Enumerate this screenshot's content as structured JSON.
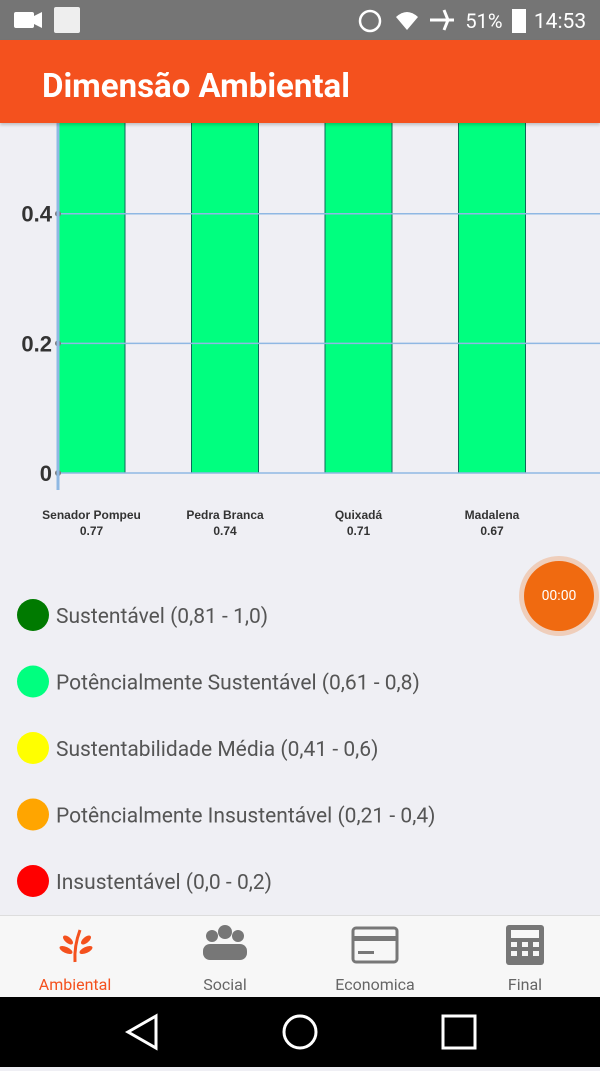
{
  "status_bar": {
    "battery": "51%",
    "time": "14:53"
  },
  "app_bar": {
    "title": "Dimensão Ambiental"
  },
  "chart_data": {
    "type": "bar",
    "categories": [
      "Senador Pompeu",
      "Pedra Branca",
      "Quixadá",
      "Madalena"
    ],
    "values": [
      0.77,
      0.74,
      0.71,
      0.67
    ],
    "color": "#00ff7f",
    "ylim": [
      0,
      0.54
    ],
    "yticks": [
      0,
      0.2,
      0.4
    ],
    "grid": true
  },
  "legend": {
    "items": [
      {
        "label": "Sustentável (0,81 - 1,0)",
        "color": "#007a00"
      },
      {
        "label": "Potêncialmente Sustentável (0,61 - 0,8)",
        "color": "#00ff7f"
      },
      {
        "label": "Sustentabilidade Média (0,41 - 0,6)",
        "color": "#ffff00"
      },
      {
        "label": "Potêncialmente Insustentável (0,21 - 0,4)",
        "color": "#ffa500"
      },
      {
        "label": "Insustentável (0,0 - 0,2)",
        "color": "#ff0000"
      }
    ]
  },
  "timer": {
    "label": "00:00"
  },
  "bottom_nav": {
    "items": [
      "Ambiental",
      "Social",
      "Economica",
      "Final"
    ]
  }
}
